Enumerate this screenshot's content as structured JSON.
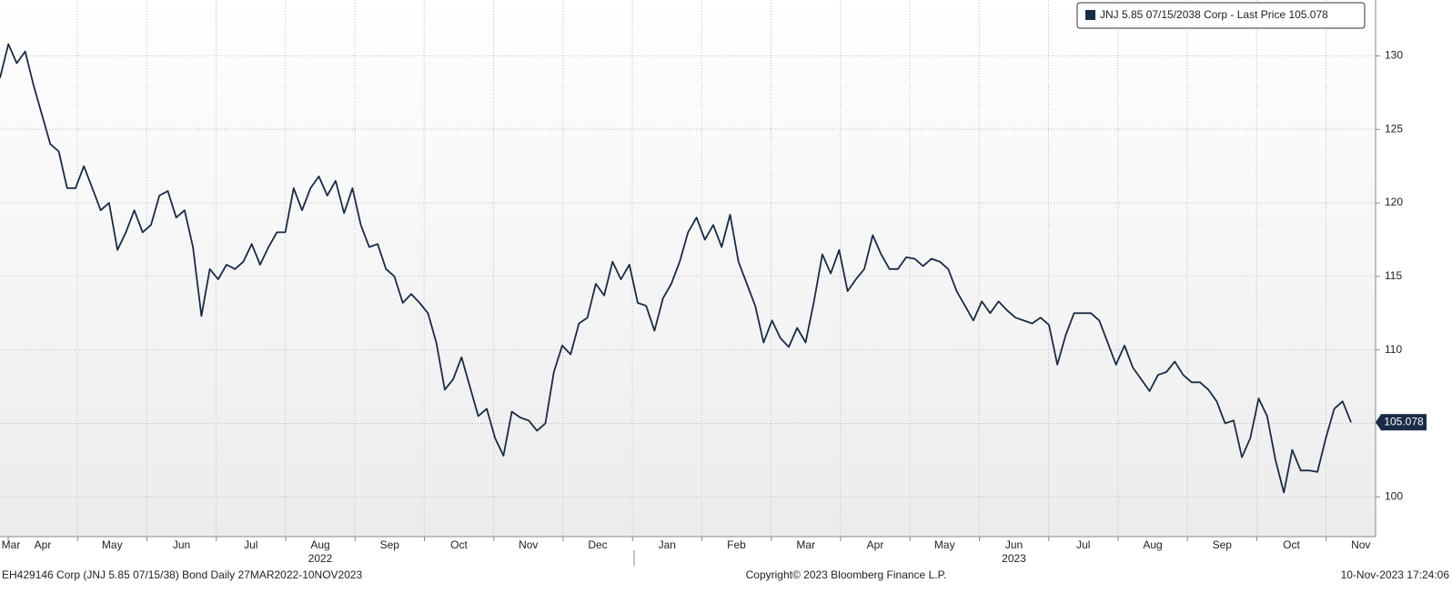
{
  "chart_data": {
    "type": "line",
    "series": [
      {
        "name": "JNJ 5.85 07/15/2038 Corp - Last Price 105.078",
        "color": "#1a2b45",
        "values": [
          128.5,
          130.8,
          129.5,
          130.3,
          128,
          126,
          124,
          123.5,
          121,
          121,
          122.5,
          121,
          119.5,
          120,
          116.8,
          118,
          119.5,
          118,
          118.5,
          120.5,
          120.8,
          119,
          119.5,
          117,
          112.3,
          115.5,
          114.8,
          115.8,
          115.5,
          116,
          117.2,
          115.8,
          117,
          118,
          118,
          121,
          119.5,
          121,
          121.8,
          120.5,
          121.5,
          119.3,
          121,
          118.5,
          117,
          117.2,
          115.5,
          115,
          113.2,
          113.8,
          113.2,
          112.5,
          110.5,
          107.3,
          108,
          109.5,
          107.5,
          105.5,
          106,
          104,
          102.8,
          105.8,
          105.4,
          105.2,
          104.5,
          105,
          108.5,
          110.3,
          109.7,
          111.8,
          112.2,
          114.5,
          113.7,
          116,
          114.8,
          115.8,
          113.2,
          113,
          111.3,
          113.5,
          114.5,
          116,
          118,
          119,
          117.5,
          118.5,
          117,
          119.2,
          116,
          114.5,
          113,
          110.5,
          112,
          110.8,
          110.2,
          111.5,
          110.5,
          113.3,
          116.5,
          115.2,
          116.8,
          114,
          114.8,
          115.5,
          117.8,
          116.5,
          115.5,
          115.5,
          116.3,
          116.2,
          115.7,
          116.2,
          116,
          115.5,
          114,
          113,
          112,
          113.3,
          112.5,
          113.3,
          112.7,
          112.2,
          112,
          111.8,
          112.2,
          111.7,
          109,
          111,
          112.5,
          112.5,
          112.5,
          112,
          110.5,
          109,
          110.3,
          108.8,
          108,
          107.2,
          108.3,
          108.5,
          109.2,
          108.3,
          107.8,
          107.8,
          107.3,
          106.5,
          105,
          105.2,
          102.7,
          104,
          106.7,
          105.5,
          102.5,
          100.3,
          103.2,
          101.8,
          101.8,
          101.7,
          104,
          106,
          106.5,
          105.078
        ]
      }
    ],
    "ylim": [
      97.3,
      133.8
    ],
    "yticks": [
      100,
      105,
      110,
      115,
      120,
      125,
      130
    ],
    "grid": true,
    "months": [
      "Mar",
      "Apr",
      "May",
      "Jun",
      "Jul",
      "Aug",
      "Sep",
      "Oct",
      "Nov",
      "Dec",
      "Jan",
      "Feb",
      "Mar",
      "Apr",
      "May",
      "Jun",
      "Jul",
      "Aug",
      "Sep",
      "Oct",
      "Nov"
    ],
    "years": [
      "2022",
      "2023"
    ],
    "footer_left": "EH429146 Corp (JNJ 5.85 07/15/38) Bond  Daily 27MAR2022-10NOV2023",
    "footer_center": "Copyright© 2023 Bloomberg Finance L.P.",
    "footer_right": "10-Nov-2023 17:24:06"
  }
}
